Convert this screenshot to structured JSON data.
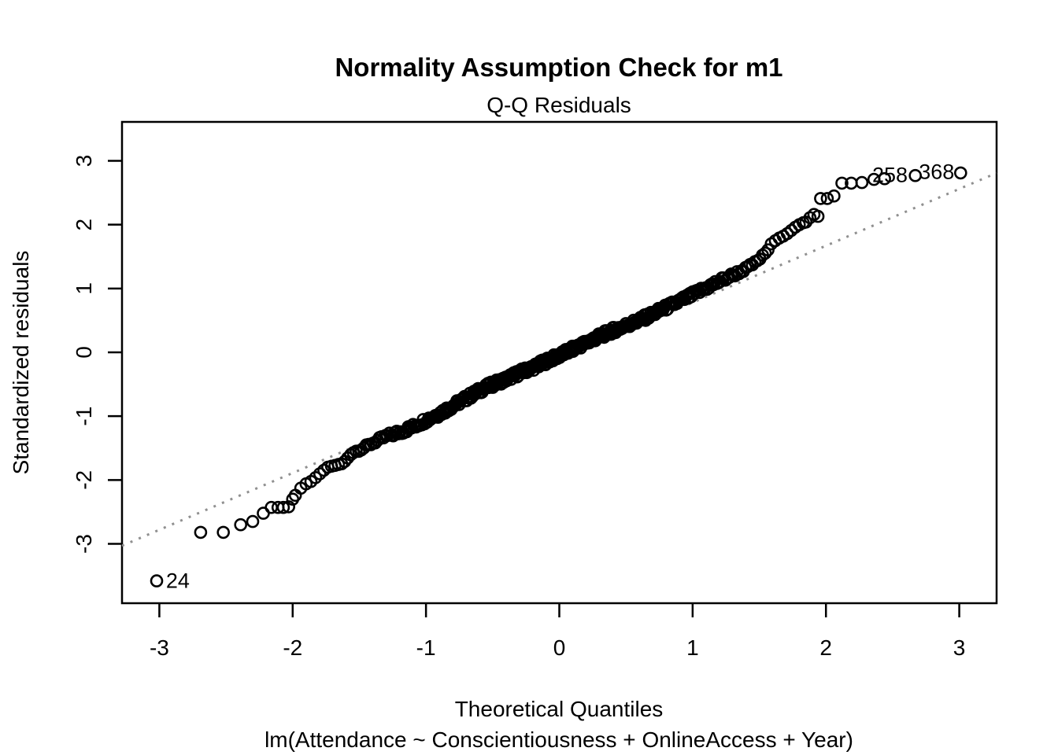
{
  "figure": {
    "background": "#ffffff",
    "foreground": "#000000"
  },
  "chart_data": {
    "type": "scatter",
    "subtype": "qq-residuals-plot",
    "title": "Normality Assumption Check for m1",
    "subtitle": "Q-Q Residuals",
    "xlabel": "Theoretical Quantiles",
    "ylabel": "Standardized residuals",
    "caption": "lm(Attendance ~ Conscientiousness + OnlineAccess + Year)",
    "x_ticks": [
      -3,
      -2,
      -1,
      0,
      1,
      2,
      3
    ],
    "y_ticks": [
      -3,
      -2,
      -1,
      0,
      1,
      2,
      3
    ],
    "x_range": [
      -3.28,
      3.28
    ],
    "y_range": [
      -3.93,
      3.61
    ],
    "grid": false,
    "legend": false,
    "point_style": {
      "shape": "open-circle",
      "radius": 7,
      "stroke": "#000000",
      "stroke_width": 2.6
    },
    "reference_line": {
      "slope": 0.89,
      "intercept": -0.11,
      "style": "dotted",
      "color": "#909090",
      "width": 3
    },
    "n_observations": 400,
    "dense_region": {
      "i_from": 11,
      "i_to": 377,
      "jitter_amp": 0.05,
      "jitter_taper_start": 1.2,
      "jitter_taper_end": 1.7
    },
    "qq_curve_anchors": [
      [
        -1.96,
        -2.18
      ],
      [
        -1.92,
        -2.08
      ],
      [
        -1.86,
        -2.02
      ],
      [
        -1.8,
        -1.91
      ],
      [
        -1.74,
        -1.8
      ],
      [
        -1.68,
        -1.77
      ],
      [
        -1.62,
        -1.74
      ],
      [
        -1.56,
        -1.58
      ],
      [
        -1.48,
        -1.51
      ],
      [
        -1.4,
        -1.42
      ],
      [
        -1.3,
        -1.32
      ],
      [
        -1.2,
        -1.25
      ],
      [
        -1.1,
        -1.17
      ],
      [
        -1.0,
        -1.06
      ],
      [
        -0.9,
        -0.96
      ],
      [
        -0.8,
        -0.84
      ],
      [
        -0.7,
        -0.72
      ],
      [
        -0.6,
        -0.6
      ],
      [
        -0.5,
        -0.5
      ],
      [
        -0.4,
        -0.42
      ],
      [
        -0.3,
        -0.32
      ],
      [
        -0.2,
        -0.24
      ],
      [
        -0.1,
        -0.14
      ],
      [
        0.0,
        -0.05
      ],
      [
        0.1,
        0.05
      ],
      [
        0.2,
        0.15
      ],
      [
        0.3,
        0.25
      ],
      [
        0.4,
        0.34
      ],
      [
        0.5,
        0.42
      ],
      [
        0.6,
        0.5
      ],
      [
        0.7,
        0.6
      ],
      [
        0.8,
        0.7
      ],
      [
        0.9,
        0.8
      ],
      [
        1.0,
        0.9
      ],
      [
        1.1,
        1.01
      ],
      [
        1.2,
        1.11
      ],
      [
        1.3,
        1.21
      ],
      [
        1.4,
        1.31
      ],
      [
        1.48,
        1.42
      ],
      [
        1.53,
        1.52
      ],
      [
        1.57,
        1.62
      ]
    ],
    "tail_points_low": [
      [
        -3.02,
        -3.58
      ],
      [
        -2.69,
        -2.82
      ],
      [
        -2.52,
        -2.82
      ],
      [
        -2.39,
        -2.7
      ],
      [
        -2.3,
        -2.65
      ],
      [
        -2.22,
        -2.52
      ],
      [
        -2.16,
        -2.43
      ],
      [
        -2.11,
        -2.43
      ],
      [
        -2.07,
        -2.43
      ],
      [
        -2.03,
        -2.42
      ],
      [
        -2.0,
        -2.3
      ],
      [
        -1.98,
        -2.24
      ]
    ],
    "tail_points_high": [
      [
        1.59,
        1.7
      ],
      [
        1.62,
        1.75
      ],
      [
        1.65,
        1.79
      ],
      [
        1.68,
        1.82
      ],
      [
        1.71,
        1.86
      ],
      [
        1.74,
        1.91
      ],
      [
        1.77,
        1.96
      ],
      [
        1.8,
        2.0
      ],
      [
        1.83,
        2.03
      ],
      [
        1.85,
        2.04
      ],
      [
        1.88,
        2.11
      ],
      [
        1.91,
        2.16
      ],
      [
        1.94,
        2.13
      ],
      [
        1.96,
        2.41
      ],
      [
        2.01,
        2.41
      ],
      [
        2.06,
        2.45
      ],
      [
        2.12,
        2.65
      ],
      [
        2.19,
        2.65
      ],
      [
        2.27,
        2.66
      ],
      [
        2.36,
        2.71
      ],
      [
        2.44,
        2.72
      ],
      [
        2.67,
        2.77
      ],
      [
        3.01,
        2.81
      ]
    ],
    "labeled_outliers": [
      {
        "text": "24",
        "point": [
          -3.02,
          -3.58
        ],
        "label_x": -2.95,
        "label_y": -3.58,
        "anchor": "start"
      },
      {
        "text": "258",
        "point": [
          2.67,
          2.77
        ],
        "label_x": 2.48,
        "label_y": 2.78,
        "anchor": "middle"
      },
      {
        "text": "368",
        "point": [
          3.01,
          2.81
        ],
        "label_x": 2.83,
        "label_y": 2.83,
        "anchor": "middle"
      }
    ]
  }
}
